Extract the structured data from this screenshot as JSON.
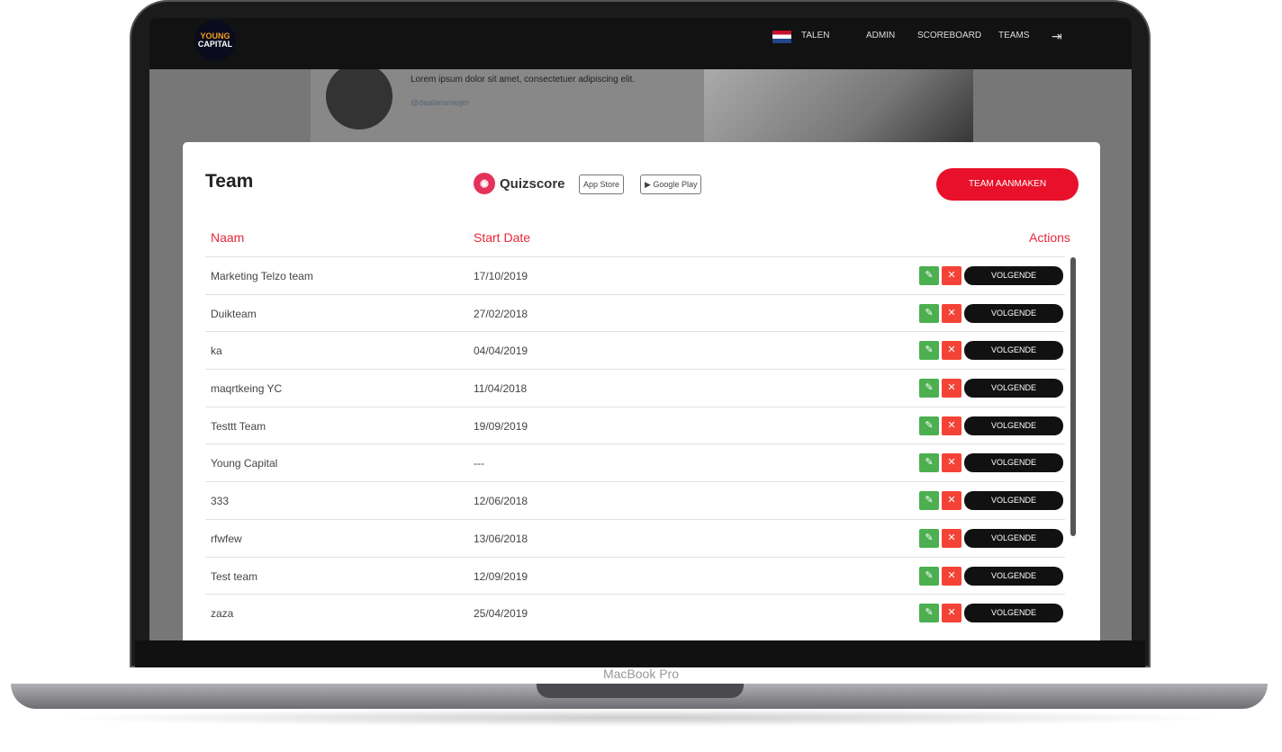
{
  "device_label": "MacBook Pro",
  "nav": {
    "logo": [
      "YOUNG",
      "CAPITAL"
    ],
    "languages": "TALEN",
    "admin": "ADMIN",
    "scoreboard": "SCOREBOARD",
    "teams": "TEAMS",
    "logout_icon": "logout-icon"
  },
  "background": {
    "text": "Lorem ipsum dolor sit amet, consectetuer adipiscing elit.",
    "handle": "@daalansmeijer"
  },
  "card": {
    "title": "Team",
    "quizscore": "Quizscore",
    "app_store": "App Store",
    "google_play": "Google Play",
    "create_button": "TEAM AANMAKEN"
  },
  "table": {
    "headers": {
      "name": "Naam",
      "start_date": "Start Date",
      "actions": "Actions"
    },
    "action_label": "VOLGENDE",
    "rows": [
      {
        "name": "Marketing Telzo team",
        "date": "17/10/2019"
      },
      {
        "name": "Duikteam",
        "date": "27/02/2018"
      },
      {
        "name": "ka",
        "date": "04/04/2019"
      },
      {
        "name": "maqrtkeing YC",
        "date": "11/04/2018"
      },
      {
        "name": "Testtt Team",
        "date": "19/09/2019"
      },
      {
        "name": "Young Capital",
        "date": "---"
      },
      {
        "name": "333",
        "date": "12/06/2018"
      },
      {
        "name": "rfwfew",
        "date": "13/06/2018"
      },
      {
        "name": "Test team",
        "date": "12/09/2019"
      },
      {
        "name": "zaza",
        "date": "25/04/2019"
      }
    ]
  },
  "colors": {
    "accent": "#e8102a",
    "edit": "#4caf50",
    "delete": "#f44336"
  }
}
